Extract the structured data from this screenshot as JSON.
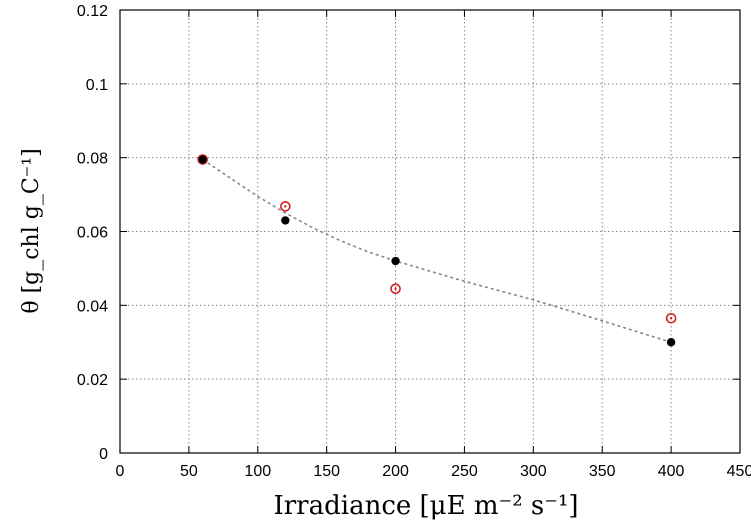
{
  "chart_data": {
    "type": "scatter",
    "xlabel": "Irradiance [μE m⁻² s⁻¹]",
    "ylabel": "θ [g_chl g_C⁻¹]",
    "xlim": [
      0,
      450
    ],
    "ylim": [
      0,
      0.12
    ],
    "x_ticks": [
      "0",
      "50",
      "100",
      "150",
      "200",
      "250",
      "300",
      "350",
      "400",
      "450"
    ],
    "y_ticks": [
      "0",
      "0.02",
      "0.04",
      "0.06",
      "0.08",
      "0.1",
      "0.12"
    ],
    "grid": true,
    "series": [
      {
        "marker": "filled-circle",
        "color": "#000000",
        "points": [
          {
            "x": 60,
            "y": 0.0795
          },
          {
            "x": 120,
            "y": 0.063
          },
          {
            "x": 200,
            "y": 0.052
          },
          {
            "x": 400,
            "y": 0.03
          }
        ]
      },
      {
        "marker": "open-circle-dot",
        "color": "#d62020",
        "points": [
          {
            "x": 60,
            "y": 0.0795
          },
          {
            "x": 120,
            "y": 0.0668
          },
          {
            "x": 200,
            "y": 0.0445
          },
          {
            "x": 400,
            "y": 0.0365
          }
        ]
      },
      {
        "marker": "dashed-line",
        "color": "#888888",
        "points": [
          {
            "x": 60,
            "y": 0.0795
          },
          {
            "x": 80,
            "y": 0.0745
          },
          {
            "x": 100,
            "y": 0.0695
          },
          {
            "x": 120,
            "y": 0.065
          },
          {
            "x": 140,
            "y": 0.061
          },
          {
            "x": 160,
            "y": 0.0575
          },
          {
            "x": 180,
            "y": 0.0545
          },
          {
            "x": 200,
            "y": 0.052
          },
          {
            "x": 250,
            "y": 0.0465
          },
          {
            "x": 300,
            "y": 0.0415
          },
          {
            "x": 350,
            "y": 0.0358
          },
          {
            "x": 400,
            "y": 0.03
          }
        ]
      }
    ]
  }
}
